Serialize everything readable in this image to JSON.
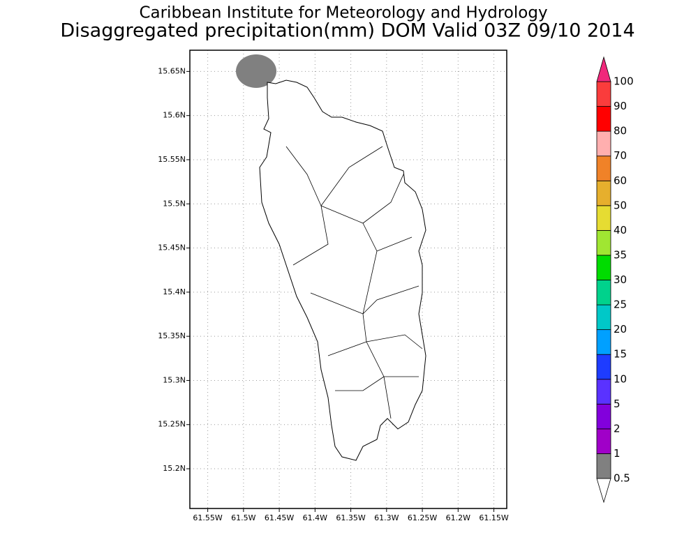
{
  "map": {
    "title": "Caribbean Institute for Meteorology and Hydrology",
    "subtitle": "Disaggregated precipitation(mm) DOM Valid 03Z 09/10 2014",
    "lon_range": [
      -61.575,
      -61.132
    ],
    "lat_range": [
      15.155,
      15.674
    ],
    "lon_ticks": [
      {
        "value": -61.55,
        "label": "61.55W"
      },
      {
        "value": -61.5,
        "label": "61.5W"
      },
      {
        "value": -61.45,
        "label": "61.45W"
      },
      {
        "value": -61.4,
        "label": "61.4W"
      },
      {
        "value": -61.35,
        "label": "61.35W"
      },
      {
        "value": -61.3,
        "label": "61.3W"
      },
      {
        "value": -61.25,
        "label": "61.25W"
      },
      {
        "value": -61.2,
        "label": "61.2W"
      },
      {
        "value": -61.15,
        "label": "61.15W"
      }
    ],
    "lat_ticks": [
      {
        "value": 15.65,
        "label": "15.65N"
      },
      {
        "value": 15.6,
        "label": "15.6N"
      },
      {
        "value": 15.55,
        "label": "15.55N"
      },
      {
        "value": 15.5,
        "label": "15.5N"
      },
      {
        "value": 15.45,
        "label": "15.45N"
      },
      {
        "value": 15.4,
        "label": "15.4N"
      },
      {
        "value": 15.35,
        "label": "15.35N"
      },
      {
        "value": 15.3,
        "label": "15.3N"
      },
      {
        "value": 15.25,
        "label": "15.25N"
      },
      {
        "value": 15.2,
        "label": "15.2N"
      }
    ],
    "grid": true,
    "colorbar": {
      "levels": [
        0.5,
        1,
        2,
        5,
        10,
        15,
        20,
        25,
        30,
        35,
        40,
        50,
        60,
        70,
        80,
        90,
        100
      ],
      "colors": [
        "#ffffff",
        "#808080",
        "#a000c8",
        "#8200dc",
        "#5a32ff",
        "#1e3cff",
        "#00a0ff",
        "#00c8c8",
        "#00d28c",
        "#00dc00",
        "#a0e632",
        "#e6dc32",
        "#e6af2d",
        "#f08228",
        "#ffafaf",
        "#ff0000",
        "#fa3c3c",
        "#f0287b"
      ]
    }
  }
}
